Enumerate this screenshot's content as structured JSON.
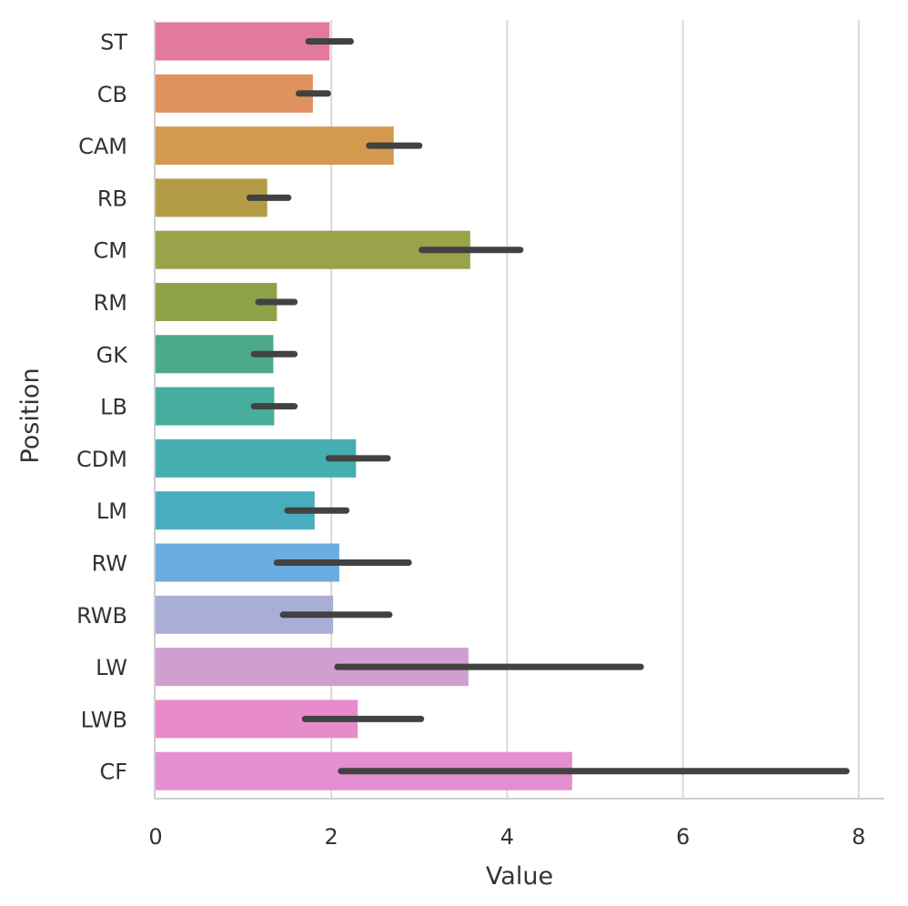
{
  "chart_data": {
    "type": "bar",
    "orientation": "horizontal",
    "xlabel": "Value",
    "ylabel": "Position",
    "xlim": [
      0,
      8.2
    ],
    "xticks": [
      0,
      2,
      4,
      6,
      8
    ],
    "grid": "vertical",
    "categories": [
      "ST",
      "CB",
      "CAM",
      "RB",
      "CM",
      "RM",
      "GK",
      "LB",
      "CDM",
      "LM",
      "RW",
      "RWB",
      "LW",
      "LWB",
      "CF"
    ],
    "values": [
      1.98,
      1.79,
      2.71,
      1.27,
      3.58,
      1.38,
      1.34,
      1.35,
      2.28,
      1.81,
      2.09,
      2.02,
      3.56,
      2.3,
      4.74
    ],
    "error_low": [
      1.74,
      1.63,
      2.43,
      1.07,
      3.03,
      1.17,
      1.12,
      1.12,
      1.97,
      1.5,
      1.38,
      1.45,
      2.07,
      1.7,
      2.11
    ],
    "error_high": [
      2.22,
      1.96,
      3.0,
      1.51,
      4.15,
      1.58,
      1.58,
      1.58,
      2.64,
      2.17,
      2.88,
      2.66,
      5.52,
      3.02,
      7.86
    ],
    "colors": [
      "#e17a9d",
      "#e0925e",
      "#d39a4f",
      "#b49b46",
      "#9aa24a",
      "#8ea24a",
      "#4ca98c",
      "#47ad9f",
      "#45aeb0",
      "#49adc0",
      "#6aace0",
      "#a9aed7",
      "#cfa0cf",
      "#e88bcb",
      "#e48fcf"
    ]
  }
}
